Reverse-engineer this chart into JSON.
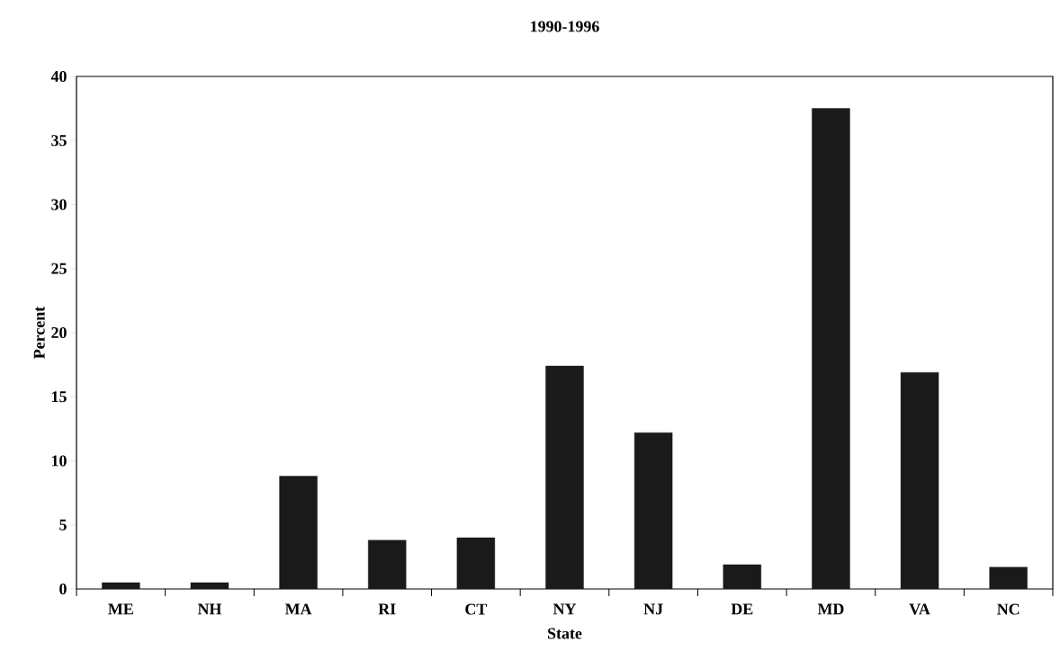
{
  "chart_data": {
    "type": "bar",
    "title": "1990-1996",
    "xlabel": "State",
    "ylabel": "Percent",
    "categories": [
      "ME",
      "NH",
      "MA",
      "RI",
      "CT",
      "NY",
      "NJ",
      "DE",
      "MD",
      "VA",
      "NC"
    ],
    "values": [
      0.5,
      0.5,
      8.8,
      3.8,
      4.0,
      17.4,
      12.2,
      1.9,
      37.5,
      16.9,
      1.7
    ],
    "color": "#1a1a1a",
    "ylim": [
      0,
      40
    ],
    "yticks": [
      0,
      5,
      10,
      15,
      20,
      25,
      30,
      35,
      40
    ],
    "grid": false
  }
}
